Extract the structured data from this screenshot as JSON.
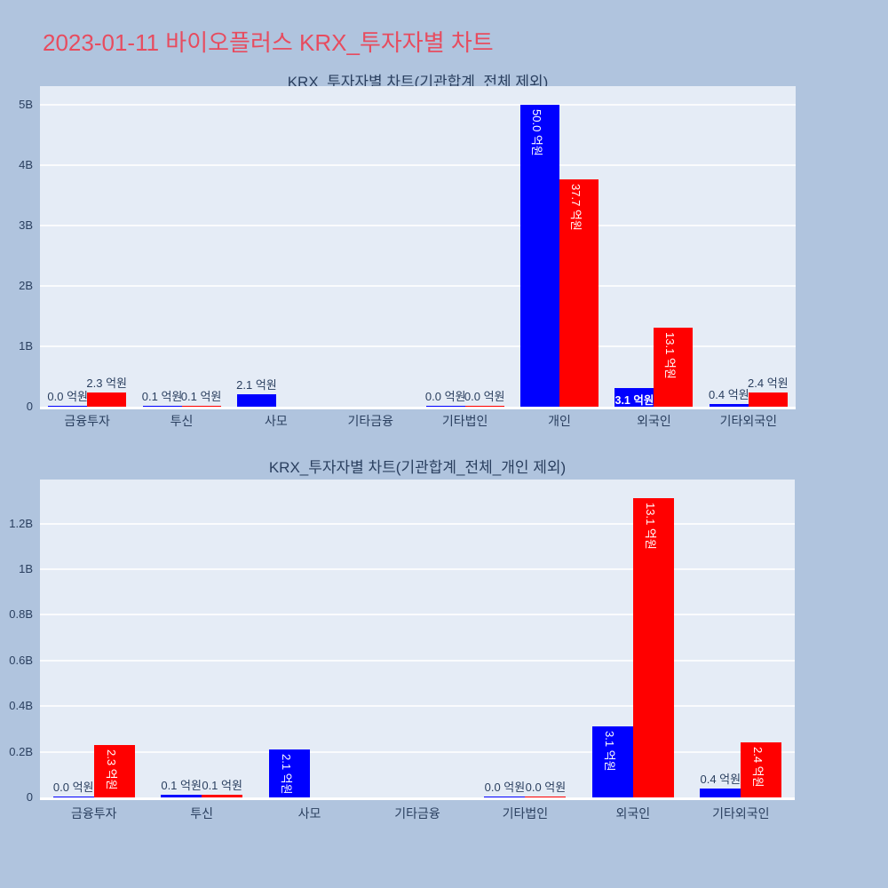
{
  "page": {
    "title": "2023-01-11 바이오플러스 KRX_투자자별 차트",
    "title_color": "#E74C5F",
    "background_color": "#B0C4DE"
  },
  "style": {
    "plot_background": "#E5ECF6",
    "grid_color": "#FFFFFF",
    "text_color": "#2A3F5F",
    "bar_blue": "#0000FF",
    "bar_red": "#FF0000"
  },
  "chart_data": [
    {
      "type": "bar",
      "title": "KRX_투자자별 차트(기관합계_전체 제외)",
      "unit": "억원",
      "xlabel": "",
      "ylabel": "",
      "ylim_B": [
        0,
        5.3
      ],
      "grid": true,
      "legend": "none",
      "y_ticks": [
        {
          "label": "5B",
          "value_B": 5
        },
        {
          "label": "4B",
          "value_B": 4
        },
        {
          "label": "3B",
          "value_B": 3
        },
        {
          "label": "2B",
          "value_B": 2
        },
        {
          "label": "1B",
          "value_B": 1
        },
        {
          "label": "0",
          "value_B": 0
        }
      ],
      "categories": [
        "금융투자",
        "투신",
        "사모",
        "기타금융",
        "기타법인",
        "개인",
        "외국인",
        "기타외국인"
      ],
      "series": [
        {
          "name": "blue-series",
          "color": "#0000FF",
          "values_eokwon": [
            0.0,
            0.1,
            2.1,
            null,
            0.0,
            50.0,
            3.1,
            0.4
          ],
          "labels": [
            "0.0 억원",
            "0.1 억원",
            "2.1 억원",
            null,
            "0.0 억원",
            "50.0 억원",
            "3.1 억원",
            "0.4 억원"
          ]
        },
        {
          "name": "red-series",
          "color": "#FF0000",
          "values_eokwon": [
            2.3,
            0.1,
            null,
            null,
            0.0,
            37.7,
            13.1,
            2.4
          ],
          "labels": [
            "2.3 억원",
            "0.1 억원",
            null,
            null,
            "0.0 억원",
            "37.7 억원",
            "13.1 억원",
            "2.4 억원"
          ]
        }
      ]
    },
    {
      "type": "bar",
      "title": "KRX_투자자별 차트(기관합계_전체_개인 제외)",
      "unit": "억원",
      "xlabel": "",
      "ylabel": "",
      "ylim_B": [
        0,
        1.39
      ],
      "grid": true,
      "legend": "none",
      "y_ticks": [
        {
          "label": "1.2B",
          "value_B": 1.2
        },
        {
          "label": "1B",
          "value_B": 1.0
        },
        {
          "label": "0.8B",
          "value_B": 0.8
        },
        {
          "label": "0.6B",
          "value_B": 0.6
        },
        {
          "label": "0.4B",
          "value_B": 0.4
        },
        {
          "label": "0.2B",
          "value_B": 0.2
        },
        {
          "label": "0",
          "value_B": 0
        }
      ],
      "categories": [
        "금융투자",
        "투신",
        "사모",
        "기타금융",
        "기타법인",
        "외국인",
        "기타외국인"
      ],
      "series": [
        {
          "name": "blue-series",
          "color": "#0000FF",
          "values_eokwon": [
            0.0,
            0.1,
            2.1,
            null,
            0.0,
            3.1,
            0.4
          ],
          "labels": [
            "0.0 억원",
            "0.1 억원",
            "2.1 억원",
            null,
            "0.0 억원",
            "3.1 억원",
            "0.4 억원"
          ]
        },
        {
          "name": "red-series",
          "color": "#FF0000",
          "values_eokwon": [
            2.3,
            0.1,
            null,
            null,
            0.0,
            13.1,
            2.4
          ],
          "labels": [
            "2.3 억원",
            "0.1 억원",
            null,
            null,
            "0.0 억원",
            "13.1 억원",
            "2.4 억원"
          ]
        }
      ]
    }
  ]
}
